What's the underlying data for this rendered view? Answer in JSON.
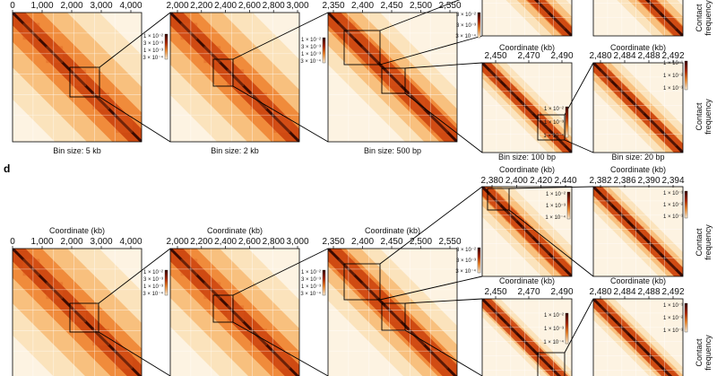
{
  "panel_letter": "d",
  "axis_title": "Coordinate (kb)",
  "side_label_1": "Contact",
  "side_label_2": "frequency",
  "colors": {
    "heat_dark": "#3a0a00",
    "heat_mid": "#d64a10",
    "heat_light": "#fbe2bf",
    "frame": "#000000"
  },
  "top_row": {
    "bins": [
      "Bin size: 5 kb",
      "Bin size: 2 kb",
      "Bin size: 500 bp"
    ],
    "bins_lower": [
      "Bin size: 100 bp",
      "Bin size: 20 bp"
    ],
    "ticks_1": [
      "0",
      "1,000",
      "2,000",
      "3,000",
      "4,000"
    ],
    "ticks_2": [
      "2,000",
      "2,200",
      "2,400",
      "2,600",
      "2,800",
      "3,000"
    ],
    "ticks_3": [
      "2,350",
      "2,400",
      "2,450",
      "2,500",
      "2,550"
    ],
    "ticks_4": [
      "2,450",
      "2,470",
      "2,490"
    ],
    "ticks_5": [
      "2,480",
      "2,484",
      "2,488",
      "2,492"
    ],
    "cb_a": [
      "1 × 10⁻²",
      "3 × 10⁻³",
      "1 × 10⁻³",
      "3 × 10⁻⁴"
    ],
    "cb_b": [
      "1 × 10⁻²",
      "3 × 10⁻³",
      "1 × 10⁻³",
      "3 × 10⁻⁴"
    ],
    "cb_c": [
      "3 × 10⁻²",
      "3 × 10⁻³",
      "3 × 10⁻⁴"
    ],
    "cb_d": [
      "1 × 10⁻²",
      "1 × 10⁻³",
      "1 × 10⁻⁴"
    ],
    "cb_e": [
      "1 × 10⁻¹",
      "1 × 10⁻²",
      "1 × 10⁻³"
    ]
  },
  "bottom_row": {
    "ticks_1": [
      "0",
      "1,000",
      "2,000",
      "3,000",
      "4,000"
    ],
    "ticks_2": [
      "2,000",
      "2,200",
      "2,400",
      "2,600",
      "2,800",
      "3,000"
    ],
    "ticks_3": [
      "2,350",
      "2,400",
      "2,450",
      "2,500",
      "2,550"
    ],
    "ticks_4": [
      "2,450",
      "2,470",
      "2,490"
    ],
    "ticks_5": [
      "2,480",
      "2,484",
      "2,488",
      "2,492"
    ],
    "ticks_6": [
      "2,380",
      "2,400",
      "2,420",
      "2,440"
    ],
    "ticks_7": [
      "2,382",
      "2,386",
      "2,390",
      "2,394"
    ],
    "cb_a": [
      "1 × 10⁻²",
      "3 × 10⁻³",
      "1 × 10⁻³",
      "3 × 10⁻⁴"
    ],
    "cb_b": [
      "1 × 10⁻²",
      "3 × 10⁻³",
      "1 × 10⁻³",
      "3 × 10⁻⁴"
    ],
    "cb_c": [
      "3 × 10⁻²",
      "3 × 10⁻³",
      "3 × 10⁻⁴"
    ],
    "cb_d": [
      "1 × 10⁻²",
      "1 × 10⁻³",
      "1 × 10⁻⁴"
    ],
    "cb_e": [
      "1 × 10⁻¹",
      "1 × 10⁻²",
      "1 × 10⁻³"
    ],
    "cb_f": [
      "1 × 10⁻²",
      "1 × 10⁻³",
      "1 × 10⁻⁴"
    ],
    "cb_g": [
      "1 × 10⁻¹",
      "1 × 10⁻²",
      "1 × 10⁻³"
    ]
  }
}
